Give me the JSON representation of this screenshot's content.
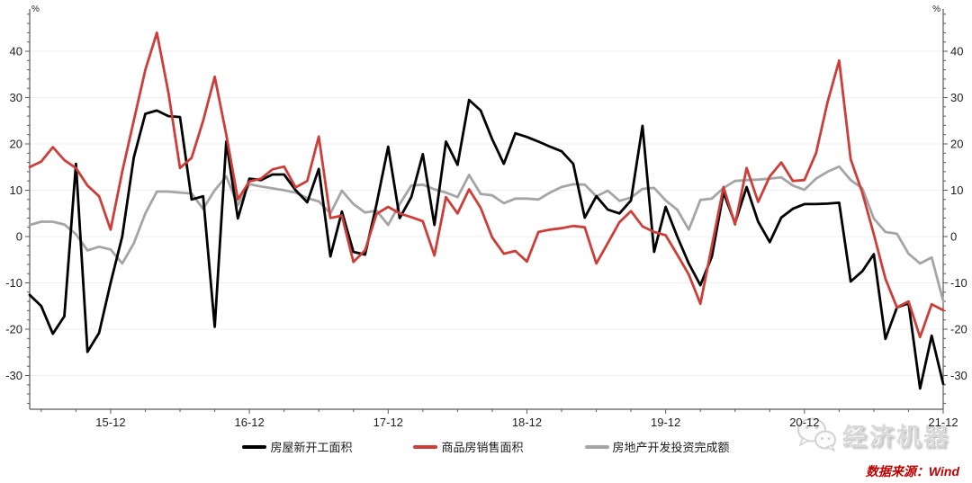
{
  "chart_data": {
    "type": "line",
    "unit_label": "%",
    "x_labels": [
      "15-05",
      "15-06",
      "15-07",
      "15-08",
      "15-09",
      "15-10",
      "15-11",
      "15-12",
      "16-01",
      "16-02",
      "16-03",
      "16-04",
      "16-05",
      "16-06",
      "16-07",
      "16-08",
      "16-09",
      "16-10",
      "16-11",
      "16-12",
      "17-01",
      "17-02",
      "17-03",
      "17-04",
      "17-05",
      "17-06",
      "17-07",
      "17-08",
      "17-09",
      "17-10",
      "17-11",
      "17-12",
      "18-01",
      "18-02",
      "18-03",
      "18-04",
      "18-05",
      "18-06",
      "18-07",
      "18-08",
      "18-09",
      "18-10",
      "18-11",
      "18-12",
      "19-01",
      "19-02",
      "19-03",
      "19-04",
      "19-05",
      "19-06",
      "19-07",
      "19-08",
      "19-09",
      "19-10",
      "19-11",
      "19-12",
      "20-01",
      "20-02",
      "20-03",
      "20-04",
      "20-05",
      "20-06",
      "20-07",
      "20-08",
      "20-09",
      "20-10",
      "20-11",
      "20-12",
      "21-01",
      "21-02",
      "21-03",
      "21-04",
      "21-05",
      "21-06",
      "21-07",
      "21-08",
      "21-09",
      "21-10",
      "21-11",
      "21-12"
    ],
    "x_tick_labels": [
      "15-12",
      "16-12",
      "17-12",
      "18-12",
      "19-12",
      "20-12",
      "21-12"
    ],
    "x_tick_positions": [
      7,
      19,
      31,
      43,
      55,
      67,
      79
    ],
    "y_ticks": [
      -30,
      -20,
      -10,
      0,
      10,
      20,
      30,
      40
    ],
    "ylim": [
      -37,
      49
    ],
    "grid": true,
    "legend_position": "bottom",
    "series": [
      {
        "name": "房屋新开工面积",
        "color": "#000000",
        "values": [
          -12.6,
          -15,
          -21,
          -17.2,
          15.7,
          -24.9,
          -20.8,
          -10,
          0,
          17,
          26.5,
          27.2,
          26,
          25.8,
          8,
          8.7,
          -19.5,
          20.5,
          3.9,
          12.5,
          12.2,
          13.4,
          13.4,
          10,
          7.4,
          14.6,
          -4.3,
          5.4,
          -3.3,
          -3.9,
          7,
          19.4,
          4,
          8.5,
          17.8,
          2.5,
          20.5,
          15.5,
          29.5,
          27.2,
          21,
          15.7,
          22.3,
          21.5,
          20.5,
          19.4,
          18.4,
          15.7,
          4.1,
          8.7,
          5.8,
          5,
          7.8,
          23.9,
          -3.3,
          6.4,
          0,
          -5.8,
          -10.5,
          -4.3,
          9.5,
          2.9,
          10.7,
          3.2,
          -1.2,
          4.1,
          6,
          7,
          7,
          7.1,
          7.3,
          -9.7,
          -7.5,
          -3.8,
          -22.1,
          -15.3,
          -14.4,
          -32.8,
          -21.4,
          -31.8
        ]
      },
      {
        "name": "商品房销售面积",
        "color": "#cd3e38",
        "values": [
          15,
          16.2,
          19.3,
          16.5,
          14.8,
          11,
          8.7,
          1.5,
          14,
          25,
          36,
          44,
          31,
          14.8,
          17,
          25,
          34.5,
          22,
          8,
          11.9,
          12.5,
          14.5,
          15.1,
          10.6,
          12,
          21.6,
          4,
          4.5,
          -5.5,
          -3,
          4.9,
          6.4,
          5,
          4.2,
          3.3,
          -4.1,
          8.5,
          5,
          10.2,
          6.2,
          -0.2,
          -3.7,
          -3.1,
          -5.4,
          1,
          1.5,
          1.8,
          2.3,
          2,
          -5.8,
          -1.4,
          3.1,
          5.5,
          2.2,
          1,
          0.3,
          -3.9,
          -8.2,
          -14.5,
          -2,
          10.7,
          2.6,
          14.8,
          7.5,
          13,
          16,
          12,
          12.2,
          18,
          29,
          38,
          16.7,
          9.5,
          0.5,
          -9.1,
          -15.3,
          -14,
          -21.7,
          -14.6,
          -15.9
        ]
      },
      {
        "name": "房地产开发投资完成额",
        "color": "#a5a5a5",
        "values": [
          2.5,
          3.2,
          3.2,
          2.6,
          0.5,
          -3,
          -2.2,
          -2.8,
          -5.8,
          -1.5,
          5,
          9.7,
          9.7,
          9.5,
          9.3,
          6,
          10,
          13,
          6.8,
          11.3,
          10.8,
          10.4,
          10,
          9.5,
          8.3,
          7.6,
          5,
          9.9,
          7,
          5.2,
          5.6,
          2.5,
          7,
          11,
          11.2,
          10.2,
          9.5,
          8.5,
          13.3,
          9.2,
          8.9,
          7.2,
          8.2,
          8.2,
          8,
          9.5,
          10.7,
          11.3,
          11.2,
          8.7,
          9.9,
          7.7,
          8.4,
          10.3,
          10.5,
          7.8,
          5.8,
          1.5,
          7.9,
          8.2,
          10.5,
          12,
          12.2,
          12.3,
          12.5,
          12.8,
          11,
          10.1,
          12.5,
          14,
          15.1,
          12.2,
          10.4,
          3.9,
          1,
          0.6,
          -3.7,
          -5.8,
          -4.5,
          -13.9
        ]
      }
    ],
    "style": {
      "grid_color": "#efefef",
      "axis_color": "#595959",
      "tick_label_color": "#1f1f1f",
      "line_width": 2.8
    }
  },
  "watermark": {
    "brand": "经济机器",
    "icon": "wechat-icon"
  },
  "source": {
    "text": "数据来源：Wind"
  }
}
